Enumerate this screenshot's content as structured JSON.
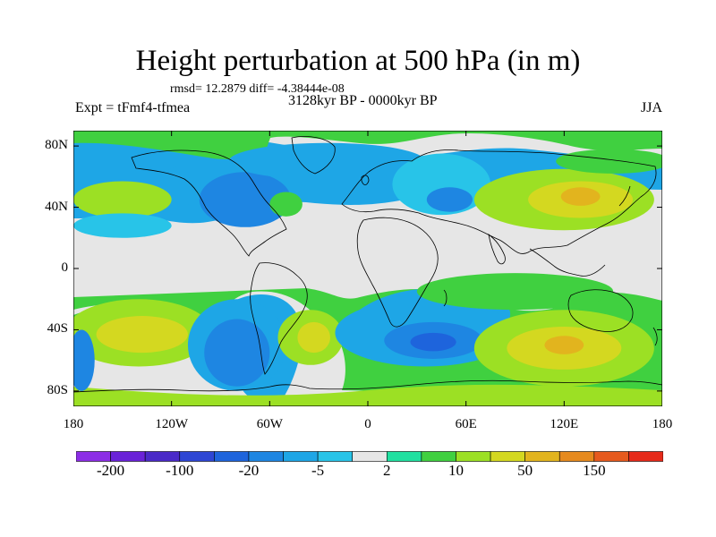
{
  "title": "Height perturbation at 500 hPa (in m)",
  "stats": "rmsd= 12.2879 diff= -4.38444e-08",
  "left_string": "Expt = tFmf4-tfmea",
  "center_string": "3128kyr BP - 0000kyr BP",
  "right_string": "JJA",
  "map": {
    "projection": "cylindrical-equidistant",
    "lon_range": [
      -180,
      180
    ],
    "lat_range": [
      -90,
      90
    ],
    "y_ticks": [
      {
        "lat": 80,
        "label": "80N"
      },
      {
        "lat": 40,
        "label": "40N"
      },
      {
        "lat": 0,
        "label": "0"
      },
      {
        "lat": -40,
        "label": "40S"
      },
      {
        "lat": -80,
        "label": "80S"
      }
    ],
    "x_ticks": [
      {
        "lon": -180,
        "label": "180"
      },
      {
        "lon": -120,
        "label": "120W"
      },
      {
        "lon": -60,
        "label": "60W"
      },
      {
        "lon": 0,
        "label": "0"
      },
      {
        "lon": 60,
        "label": "60E"
      },
      {
        "lon": 120,
        "label": "120E"
      },
      {
        "lon": 180,
        "label": "180"
      }
    ],
    "background_color": "#e6e6e6",
    "coastline_color": "#000000"
  },
  "colorbar": {
    "colors": [
      "#8c2ee6",
      "#6a22d8",
      "#4a2ac8",
      "#2e46d4",
      "#1e64dc",
      "#1e86e2",
      "#1ea6e6",
      "#28c4e8",
      "#e6e6e6",
      "#20e0a0",
      "#40d040",
      "#9ce024",
      "#d4d820",
      "#e2b41e",
      "#e68a1e",
      "#e65a1e",
      "#e62a1a"
    ],
    "labels": [
      {
        "boundary": 1,
        "text": "-200"
      },
      {
        "boundary": 3,
        "text": "-100"
      },
      {
        "boundary": 5,
        "text": "-20"
      },
      {
        "boundary": 7,
        "text": "-5"
      },
      {
        "boundary": 9,
        "text": "2"
      },
      {
        "boundary": 11,
        "text": "10"
      },
      {
        "boundary": 13,
        "text": "50"
      },
      {
        "boundary": 15,
        "text": "150"
      }
    ]
  },
  "field_features": [
    {
      "lon": -100,
      "lat": 55,
      "rx": 30,
      "ry": 14,
      "level": 6
    },
    {
      "lon": -75,
      "lat": 45,
      "rx": 28,
      "ry": 18,
      "level": 5
    },
    {
      "lon": -50,
      "lat": 42,
      "rx": 10,
      "ry": 8,
      "level": 10
    },
    {
      "lon": -25,
      "lat": 70,
      "rx": 60,
      "ry": 12,
      "level": 6
    },
    {
      "lon": 45,
      "lat": 55,
      "rx": 30,
      "ry": 20,
      "level": 7
    },
    {
      "lon": 50,
      "lat": 45,
      "rx": 14,
      "ry": 8,
      "level": 5
    },
    {
      "lon": 120,
      "lat": 45,
      "rx": 55,
      "ry": 20,
      "level": 11
    },
    {
      "lon": 130,
      "lat": 45,
      "rx": 32,
      "ry": 12,
      "level": 12
    },
    {
      "lon": 130,
      "lat": 47,
      "rx": 12,
      "ry": 6,
      "level": 13
    },
    {
      "lon": 150,
      "lat": 70,
      "rx": 35,
      "ry": 8,
      "level": 10
    },
    {
      "lon": -150,
      "lat": 45,
      "rx": 30,
      "ry": 12,
      "level": 11
    },
    {
      "lon": -150,
      "lat": 28,
      "rx": 30,
      "ry": 8,
      "level": 7
    },
    {
      "lon": -140,
      "lat": -42,
      "rx": 45,
      "ry": 22,
      "level": 11
    },
    {
      "lon": -138,
      "lat": -43,
      "rx": 28,
      "ry": 12,
      "level": 12
    },
    {
      "lon": -80,
      "lat": -50,
      "rx": 30,
      "ry": 30,
      "level": 6
    },
    {
      "lon": -80,
      "lat": -55,
      "rx": 20,
      "ry": 22,
      "level": 5
    },
    {
      "lon": -35,
      "lat": -45,
      "rx": 20,
      "ry": 18,
      "level": 11
    },
    {
      "lon": -33,
      "lat": -45,
      "rx": 10,
      "ry": 10,
      "level": 12
    },
    {
      "lon": 35,
      "lat": -42,
      "rx": 55,
      "ry": 22,
      "level": 6
    },
    {
      "lon": 40,
      "lat": -47,
      "rx": 30,
      "ry": 12,
      "level": 5
    },
    {
      "lon": 40,
      "lat": -48,
      "rx": 14,
      "ry": 6,
      "level": 4
    },
    {
      "lon": 120,
      "lat": -52,
      "rx": 55,
      "ry": 25,
      "level": 11
    },
    {
      "lon": 120,
      "lat": -52,
      "rx": 35,
      "ry": 14,
      "level": 12
    },
    {
      "lon": 120,
      "lat": -50,
      "rx": 12,
      "ry": 6,
      "level": 13
    },
    {
      "lon": -175,
      "lat": -60,
      "rx": 8,
      "ry": 20,
      "level": 5
    },
    {
      "lon": 90,
      "lat": -15,
      "rx": 60,
      "ry": 12,
      "level": 10
    }
  ]
}
